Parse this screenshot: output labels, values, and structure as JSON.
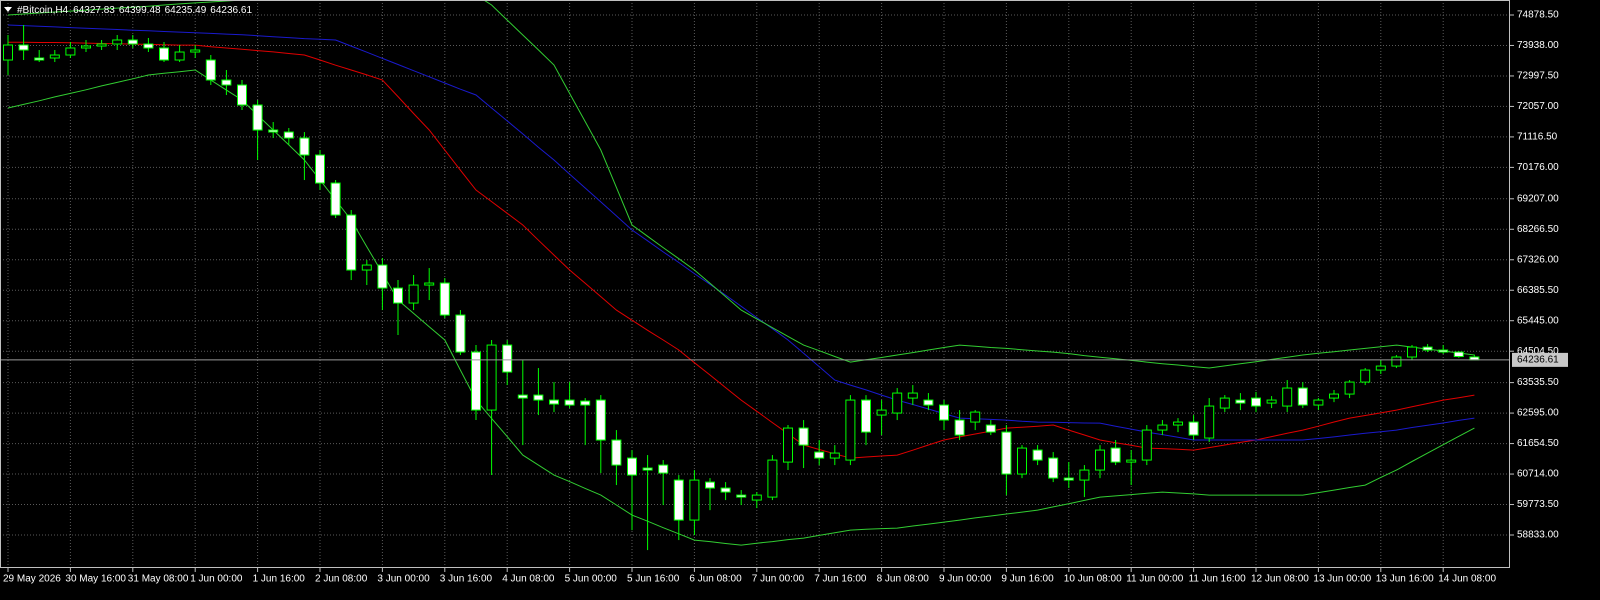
{
  "chart_data": {
    "type": "candlestick",
    "title": "#Bitcoin,H4",
    "categories": [
      "29 May 2026",
      null,
      null,
      null,
      "30 May 16:00",
      null,
      null,
      null,
      "31 May 08:00",
      null,
      null,
      null,
      "1 Jun 00:00",
      null,
      null,
      null,
      "1 Jun 16:00",
      null,
      null,
      null,
      "2 Jun 08:00",
      null,
      null,
      null,
      "3 Jun 00:00",
      null,
      null,
      null,
      "3 Jun 16:00",
      null,
      null,
      null,
      "4 Jun 08:00",
      null,
      null,
      null,
      "5 Jun 00:00",
      null,
      null,
      null,
      "5 Jun 16:00",
      null,
      null,
      null,
      "6 Jun 08:00",
      null,
      null,
      null,
      "7 Jun 00:00",
      null,
      null,
      null,
      "7 Jun 16:00",
      null,
      null,
      null,
      "8 Jun 08:00",
      null,
      null,
      null,
      "9 Jun 00:00",
      null,
      null,
      null,
      "9 Jun 16:00",
      null,
      null,
      null,
      "10 Jun 08:00",
      null,
      null,
      null,
      "11 Jun 00:00",
      null,
      null,
      null,
      "11 Jun 16:00",
      null,
      null,
      null,
      "12 Jun 08:00",
      null,
      null,
      null,
      "13 Jun 00:00",
      null,
      null,
      null,
      "13 Jun 16:00",
      null,
      null,
      null,
      "14 Jun 08:00",
      null,
      null
    ],
    "candles": {
      "open": [
        73489,
        73952,
        73551,
        73551,
        73644,
        73860,
        73921,
        73983,
        74107,
        73983,
        73860,
        73489,
        73736,
        73489,
        72872,
        72718,
        72101,
        71329,
        71267,
        71082,
        70558,
        69693,
        68706,
        67009,
        67163,
        66453,
        65990,
        66546,
        66608,
        65620,
        64478,
        62688,
        64694,
        63151,
        63151,
        62997,
        62997,
        62966,
        62997,
        61763,
        61207,
        60899,
        60991,
        60528,
        59294,
        60466,
        60282,
        60065,
        59911,
        60003,
        61083,
        62133,
        61392,
        61207,
        61145,
        62997,
        62534,
        62596,
        63058,
        62997,
        62843,
        62380,
        62318,
        62226,
        62009,
        60714,
        61454,
        61207,
        60590,
        60528,
        60837,
        61516,
        61083,
        61145,
        62071,
        62226,
        62318,
        61825,
        62750,
        62997,
        63058,
        62904,
        62812,
        63368,
        62843,
        63058,
        63182,
        63552,
        63923,
        64046,
        64325,
        64632,
        64540,
        64478,
        64327.83
      ],
      "high": [
        74261,
        74570,
        73798,
        73798,
        74045,
        74107,
        74107,
        74261,
        74261,
        74169,
        74045,
        73952,
        73952,
        73644,
        73181,
        72872,
        72255,
        71576,
        71391,
        71267,
        70712,
        69786,
        68860,
        67317,
        67379,
        66700,
        66855,
        67070,
        66762,
        65774,
        64694,
        64849,
        64849,
        64231,
        63985,
        63552,
        63552,
        63058,
        63151,
        62071,
        61454,
        61300,
        61145,
        60683,
        60837,
        60590,
        60466,
        60220,
        60158,
        61300,
        62226,
        62380,
        61763,
        61608,
        63151,
        63151,
        62997,
        63368,
        63460,
        63213,
        62997,
        62688,
        62688,
        62380,
        62226,
        61608,
        61608,
        61392,
        61083,
        60991,
        61608,
        61763,
        61454,
        62226,
        62380,
        62441,
        62534,
        63058,
        63151,
        63213,
        63244,
        63120,
        63614,
        63552,
        63058,
        63306,
        63614,
        63985,
        64231,
        64386,
        64694,
        64725,
        64694,
        64509,
        64399.48
      ],
      "low": [
        73027,
        73489,
        73427,
        73427,
        73551,
        73736,
        73798,
        73798,
        73860,
        73736,
        73427,
        73427,
        73551,
        72718,
        72409,
        71946,
        70403,
        71082,
        70866,
        69786,
        69477,
        68614,
        66700,
        66546,
        65774,
        65003,
        65774,
        66083,
        65527,
        64386,
        62380,
        60683,
        63460,
        61608,
        62534,
        62626,
        62750,
        61608,
        60744,
        60374,
        58985,
        58368,
        59757,
        58677,
        58831,
        59602,
        59911,
        59757,
        59664,
        59911,
        60837,
        60899,
        60991,
        60991,
        60991,
        61608,
        61917,
        62380,
        62843,
        62688,
        62071,
        61763,
        62071,
        61917,
        60065,
        60590,
        60991,
        60466,
        60282,
        60003,
        60590,
        60991,
        60374,
        60991,
        61917,
        62009,
        61763,
        61701,
        62626,
        62688,
        62626,
        62750,
        62626,
        62750,
        62688,
        62935,
        63058,
        63460,
        63800,
        63985,
        64231,
        64478,
        64417,
        64300,
        64235.49
      ],
      "close": [
        73952,
        73798,
        73489,
        73644,
        73860,
        73921,
        73983,
        74107,
        73983,
        73860,
        73489,
        73736,
        73798,
        72872,
        72718,
        72101,
        71329,
        71267,
        71082,
        70558,
        69693,
        68706,
        67009,
        67163,
        66453,
        65990,
        66546,
        66608,
        65620,
        64478,
        62688,
        64694,
        63861,
        63058,
        62997,
        62874,
        62843,
        62843,
        61763,
        60991,
        60683,
        60837,
        60744,
        59294,
        60528,
        60282,
        60158,
        60003,
        60065,
        61145,
        62133,
        61608,
        61207,
        61361,
        62997,
        62009,
        62688,
        63213,
        63213,
        62843,
        62380,
        61917,
        62626,
        62009,
        60714,
        61516,
        61145,
        60590,
        60528,
        60837,
        61454,
        61083,
        61145,
        62071,
        62226,
        62318,
        61917,
        62812,
        63058,
        62904,
        62812,
        62997,
        63368,
        62843,
        62997,
        63182,
        63552,
        63923,
        64046,
        64325,
        64632,
        64540,
        64478,
        64340,
        64236.61
      ]
    },
    "bull_color": "#000000",
    "bear_color": "#ffffff",
    "wick_color": "#00ff00",
    "overlays": [
      {
        "color": "#e00000",
        "values": [
          74040,
          74040,
          74030,
          74030,
          74020,
          74010,
          74000,
          73990,
          73980,
          73970,
          73960,
          73950,
          73950,
          73900,
          73860,
          73820,
          73780,
          73740,
          73690,
          73644,
          73490,
          73330,
          73180,
          73030,
          72872,
          72360,
          71840,
          71329,
          70710,
          70090,
          69477,
          69120,
          68760,
          68398,
          67930,
          67470,
          67009,
          66600,
          66190,
          65774,
          65460,
          65150,
          64850,
          64540,
          64150,
          63770,
          63380,
          62997,
          62650,
          62300,
          61960,
          61608,
          61470,
          61340,
          61207,
          61240,
          61270,
          61300,
          61450,
          61610,
          61763,
          61860,
          61950,
          62040,
          62133,
          62160,
          62190,
          62226,
          62070,
          61920,
          61763,
          61680,
          61600,
          61516,
          61500,
          61480,
          61454,
          61530,
          61610,
          61690,
          61763,
          61870,
          61970,
          62071,
          62190,
          62320,
          62441,
          62520,
          62600,
          62688,
          62790,
          62890,
          62997,
          63070,
          63151
        ]
      },
      {
        "color": "#1a1acd",
        "values": [
          74570,
          74550,
          74530,
          74510,
          74490,
          74470,
          74450,
          74430,
          74410,
          74390,
          74370,
          74350,
          74330,
          74310,
          74290,
          74270,
          74240,
          74210,
          74180,
          74150,
          74130,
          74107,
          73920,
          73730,
          73540,
          73350,
          73160,
          72970,
          72780,
          72590,
          72409,
          72010,
          71610,
          71210,
          70800,
          70403,
          69970,
          69540,
          69110,
          68680,
          68243,
          67910,
          67570,
          67240,
          66900,
          66570,
          66237,
          65890,
          65540,
          65200,
          64849,
          64440,
          64030,
          63614,
          63460,
          63310,
          63150,
          62997,
          62860,
          62720,
          62580,
          62441,
          62420,
          62400,
          62380,
          62340,
          62318,
          62310,
          62300,
          62290,
          62287,
          62190,
          62100,
          62009,
          61930,
          61850,
          61763,
          61763,
          61763,
          61763,
          61763,
          61763,
          61763,
          61763,
          61810,
          61860,
          61920,
          61970,
          62020,
          62071,
          62150,
          62220,
          62290,
          62370,
          62441
        ]
      },
      {
        "color": "#32cd32",
        "values": [
          74878,
          74910,
          74940,
          74970,
          75000,
          75030,
          75060,
          75090,
          75120,
          75150,
          75187,
          75220,
          75250,
          75280,
          75310,
          75340,
          75370,
          75400,
          75430,
          75460,
          75495,
          75495,
          75495,
          75495,
          75495,
          75495,
          75495,
          75495,
          75495,
          75495,
          75495,
          75187,
          74720,
          74260,
          73800,
          73335,
          72460,
          71590,
          70712,
          69560,
          68398,
          68050,
          67700,
          67360,
          67009,
          66600,
          66190,
          65774,
          65500,
          65230,
          64960,
          64694,
          64520,
          64340,
          64169,
          64240,
          64310,
          64386,
          64460,
          64540,
          64620,
          64694,
          64660,
          64620,
          64590,
          64550,
          64510,
          64478,
          64430,
          64370,
          64320,
          64270,
          64220,
          64169,
          64120,
          64080,
          64030,
          63985,
          64050,
          64120,
          64180,
          64250,
          64320,
          64386,
          64440,
          64490,
          64540,
          64590,
          64640,
          64694,
          64630,
          64570,
          64510,
          64450,
          64386
        ]
      },
      {
        "color": "#32cd32",
        "values": [
          72008,
          72120,
          72230,
          72350,
          72460,
          72570,
          72690,
          72800,
          72910,
          73027,
          73080,
          73130,
          73181,
          72870,
          72560,
          72255,
          71790,
          71330,
          70870,
          70403,
          69790,
          69170,
          68552,
          67730,
          66910,
          66083,
          65670,
          65260,
          64849,
          63920,
          62997,
          62430,
          61870,
          61300,
          60990,
          60683,
          60480,
          60270,
          60065,
          59760,
          59448,
          59260,
          59060,
          58870,
          58677,
          58630,
          58570,
          58522,
          58580,
          58630,
          58690,
          58739,
          58820,
          58900,
          58985,
          59010,
          59030,
          59046,
          59110,
          59170,
          59230,
          59294,
          59360,
          59420,
          59480,
          59540,
          59602,
          59700,
          59800,
          59900,
          60003,
          60040,
          60080,
          60120,
          60158,
          60130,
          60100,
          60065,
          60065,
          60065,
          60065,
          60065,
          60065,
          60065,
          60140,
          60220,
          60300,
          60374,
          60610,
          60837,
          61100,
          61360,
          61620,
          61880,
          62133
        ]
      }
    ],
    "ylim": [
      57815,
      75341
    ],
    "yticks": [
      {
        "value": 74878.5,
        "label": "74878.50"
      },
      {
        "value": 73938,
        "label": "73938.00"
      },
      {
        "value": 72997.5,
        "label": "72997.50"
      },
      {
        "value": 72057,
        "label": "72057.00"
      },
      {
        "value": 71116.5,
        "label": "71116.50"
      },
      {
        "value": 70176,
        "label": "70176.00"
      },
      {
        "value": 69207,
        "label": "69207.00"
      },
      {
        "value": 68266.5,
        "label": "68266.50"
      },
      {
        "value": 67326,
        "label": "67326.00"
      },
      {
        "value": 66385.5,
        "label": "66385.50"
      },
      {
        "value": 65445,
        "label": "65445.00"
      },
      {
        "value": 64504.5,
        "label": "64504.50"
      },
      {
        "value": 63535.5,
        "label": "63535.50"
      },
      {
        "value": 62595,
        "label": "62595.00"
      },
      {
        "value": 61654.5,
        "label": "61654.50"
      },
      {
        "value": 60714,
        "label": "60714.00"
      },
      {
        "value": 59773.5,
        "label": "59773.50"
      },
      {
        "value": 58833,
        "label": "58833.00"
      }
    ],
    "grid": true
  }
}
